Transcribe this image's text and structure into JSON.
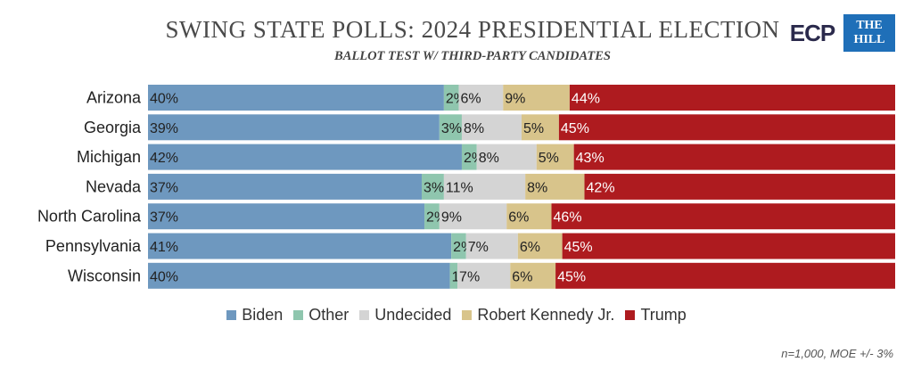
{
  "title": "SWING STATE POLLS: 2024 PRESIDENTIAL ELECTION",
  "subtitle": "BALLOT TEST W/ THIRD-PARTY CANDIDATES",
  "logos": {
    "ecp": "ECP",
    "hill_line1": "THE",
    "hill_line2": "HILL"
  },
  "footnote": "n=1,000, MOE +/- 3%",
  "colors": {
    "Biden": "#6e98bf",
    "Other": "#8fc6ae",
    "Undecided": "#d4d4d4",
    "Robert Kennedy Jr.": "#d8c48b",
    "Trump": "#ae1b1f"
  },
  "legend": [
    "Biden",
    "Other",
    "Undecided",
    "Robert Kennedy Jr.",
    "Trump"
  ],
  "chart_data": {
    "type": "bar",
    "orientation": "horizontal",
    "stacked": true,
    "title": "SWING STATE POLLS: 2024 PRESIDENTIAL ELECTION",
    "subtitle": "BALLOT TEST W/ THIRD-PARTY CANDIDATES",
    "categories": [
      "Arizona",
      "Georgia",
      "Michigan",
      "Nevada",
      "North Carolina",
      "Pennsylvania",
      "Wisconsin"
    ],
    "series": [
      {
        "name": "Biden",
        "values": [
          40,
          39,
          42,
          37,
          37,
          41,
          40
        ]
      },
      {
        "name": "Other",
        "values": [
          2,
          3,
          2,
          3,
          2,
          2,
          1
        ]
      },
      {
        "name": "Undecided",
        "values": [
          6,
          8,
          8,
          11,
          9,
          7,
          7
        ]
      },
      {
        "name": "Robert Kennedy Jr.",
        "values": [
          9,
          5,
          5,
          8,
          6,
          6,
          6
        ]
      },
      {
        "name": "Trump",
        "values": [
          44,
          45,
          43,
          42,
          46,
          45,
          45
        ]
      }
    ],
    "xlabel": "",
    "ylabel": "",
    "legend_position": "bottom"
  }
}
